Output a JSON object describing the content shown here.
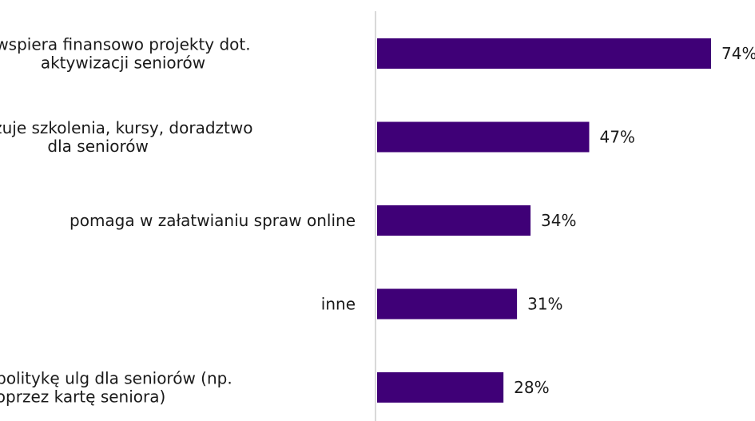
{
  "chart_data": {
    "type": "bar",
    "orientation": "horizontal",
    "categories": [
      [
        "wspiera finansowo projekty dot.",
        "aktywizacji seniorów"
      ],
      [
        "organizuje szkolenia, kursy, doradztwo",
        "dla seniorów"
      ],
      [
        "pomaga w załatwianiu spraw online"
      ],
      [
        "inne"
      ],
      [
        "prowadzi politykę ulg dla seniorów (np.",
        "poprzez kartę seniora)"
      ]
    ],
    "values": [
      74,
      47,
      34,
      31,
      28
    ],
    "value_labels": [
      "74%",
      "47%",
      "34%",
      "31%",
      "28%"
    ],
    "unit": "%",
    "xlim": [
      0,
      74
    ],
    "bar_color": "#3f0077",
    "axis_color": "#d9d9d9",
    "grid": false,
    "legend": "none"
  }
}
